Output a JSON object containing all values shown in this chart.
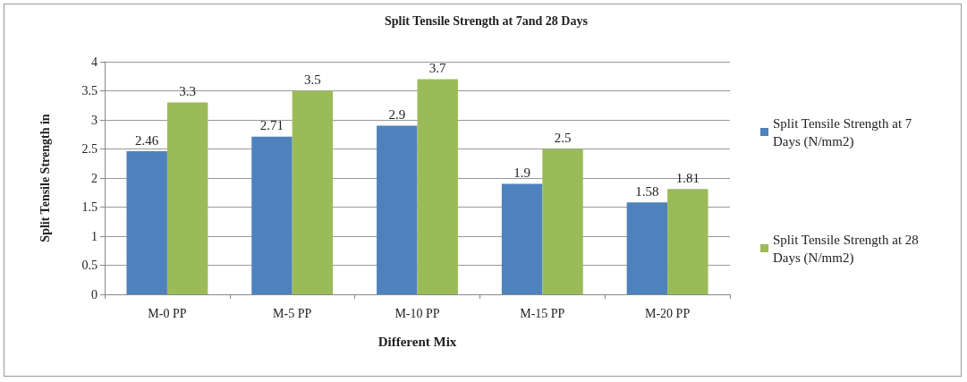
{
  "chart_data": {
    "type": "bar",
    "title": "Split Tensile Strength at 7and 28 Days",
    "xlabel": "Different Mix",
    "ylabel": "Split Tensile Strength in",
    "categories": [
      "M-0 PP",
      "M-5 PP",
      "M-10 PP",
      "M-15 PP",
      "M-20 PP"
    ],
    "series": [
      {
        "name": "Split Tensile Strength at 7  Days (N/mm2)",
        "color": "#4f81bd",
        "values": [
          2.46,
          2.71,
          2.9,
          1.9,
          1.58
        ]
      },
      {
        "name": "Split Tensile Strength at 28  Days (N/mm2)",
        "color": "#9bbb59",
        "values": [
          3.3,
          3.5,
          3.7,
          2.5,
          1.81
        ]
      }
    ],
    "ylim": [
      0,
      4
    ],
    "yticks": [
      0,
      0.5,
      1,
      1.5,
      2,
      2.5,
      3,
      3.5,
      4
    ],
    "grid": "y",
    "legend": "right",
    "data_labels": true
  }
}
